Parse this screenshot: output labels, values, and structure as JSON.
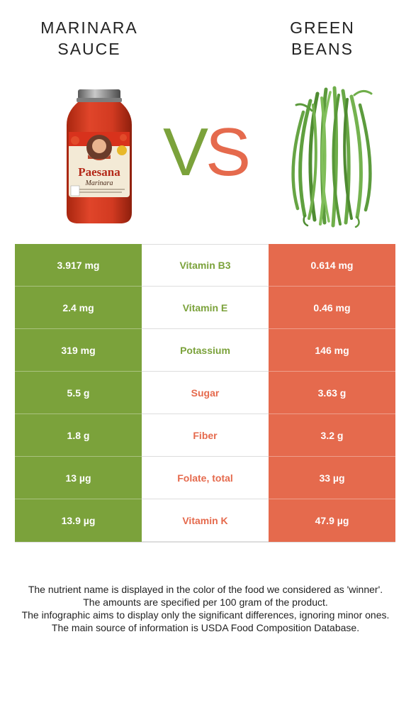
{
  "header": {
    "left_food": "MARINARA\nSAUCE",
    "left_food_line1": "MARINARA",
    "left_food_line2": "SAUCE",
    "right_food_line1": "GREEN",
    "right_food_line2": "BEANS",
    "vs_v": "V",
    "vs_s": "S"
  },
  "colors": {
    "left_food": "#7ba23b",
    "right_food": "#e56a4d"
  },
  "jar_label": {
    "brand": "Paesana",
    "product": "Marinara"
  },
  "rows": [
    {
      "left": "3.917 mg",
      "nutrient": "Vitamin B3",
      "right": "0.614 mg",
      "winner": "left"
    },
    {
      "left": "2.4 mg",
      "nutrient": "Vitamin E",
      "right": "0.46 mg",
      "winner": "left"
    },
    {
      "left": "319 mg",
      "nutrient": "Potassium",
      "right": "146 mg",
      "winner": "left"
    },
    {
      "left": "5.5 g",
      "nutrient": "Sugar",
      "right": "3.63 g",
      "winner": "right"
    },
    {
      "left": "1.8 g",
      "nutrient": "Fiber",
      "right": "3.2 g",
      "winner": "right"
    },
    {
      "left": "13 µg",
      "nutrient": "Folate, total",
      "right": "33 µg",
      "winner": "right"
    },
    {
      "left": "13.9 µg",
      "nutrient": "Vitamin K",
      "right": "47.9 µg",
      "winner": "right"
    }
  ],
  "footnotes": [
    "The nutrient name is displayed in the color of the food we considered as 'winner'.",
    "The amounts are specified per 100 gram of the product.",
    "The infographic aims to display only the significant differences, ignoring minor ones.",
    "The main source of information is USDA Food Composition Database."
  ]
}
